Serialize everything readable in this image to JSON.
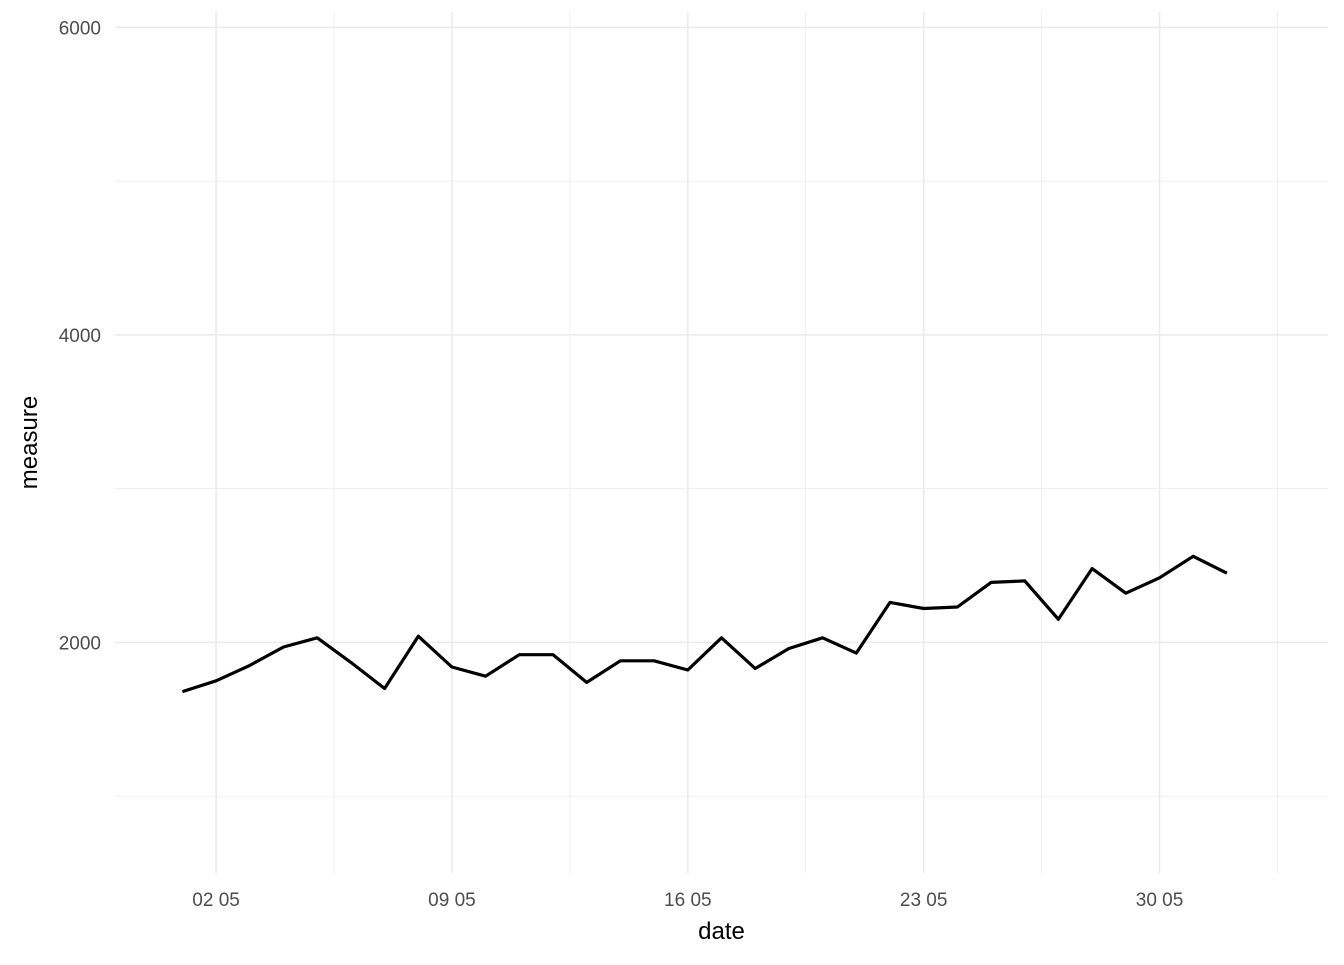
{
  "chart_data": {
    "type": "line",
    "title": "",
    "xlabel": "date",
    "ylabel": "measure",
    "x_tick_labels": [
      "02 05",
      "09 05",
      "16 05",
      "23 05",
      "30 05"
    ],
    "y_tick_labels": [
      "2000",
      "4000",
      "6000"
    ],
    "y_ticks": [
      2000,
      4000,
      6000
    ],
    "ylim": [
      500,
      6100
    ],
    "xlim": [
      "2021-04-29",
      "2021-06-04"
    ],
    "grid": true,
    "legend": "none",
    "line_color": "#000000",
    "series": [
      {
        "x": [
          "2021-05-01",
          "2021-05-02",
          "2021-05-03",
          "2021-05-04",
          "2021-05-05",
          "2021-05-06",
          "2021-05-07",
          "2021-05-08",
          "2021-05-09",
          "2021-05-10",
          "2021-05-11",
          "2021-05-12",
          "2021-05-13",
          "2021-05-14",
          "2021-05-15",
          "2021-05-16",
          "2021-05-17",
          "2021-05-18",
          "2021-05-19",
          "2021-05-20",
          "2021-05-21",
          "2021-05-22",
          "2021-05-23",
          "2021-05-24",
          "2021-05-25",
          "2021-05-26",
          "2021-05-27",
          "2021-05-28",
          "2021-05-29",
          "2021-05-30",
          "2021-05-31",
          "2021-06-01"
        ],
        "values": [
          1680,
          1750,
          1850,
          1970,
          2030,
          1870,
          1700,
          2040,
          1840,
          1780,
          1920,
          1920,
          1740,
          1880,
          1880,
          1820,
          2030,
          1830,
          1960,
          2030,
          1930,
          2260,
          2220,
          2230,
          2390,
          2400,
          2150,
          2480,
          2320,
          2420,
          2560,
          2450
        ]
      }
    ]
  }
}
